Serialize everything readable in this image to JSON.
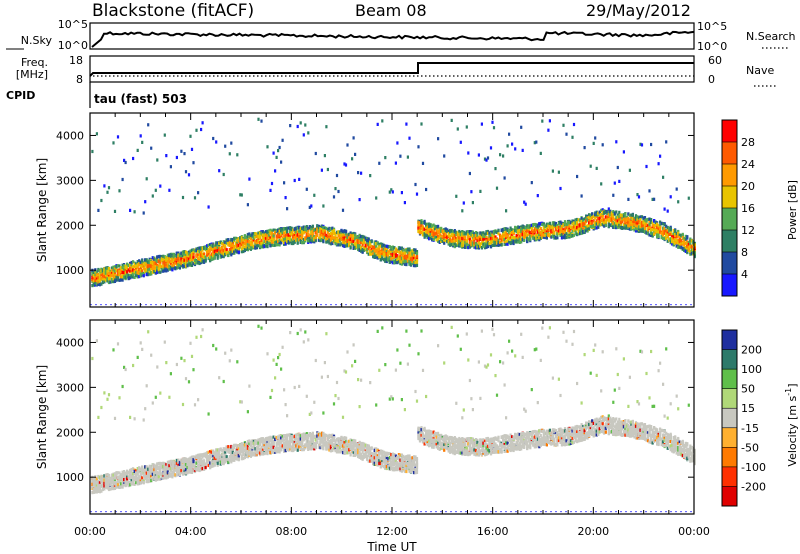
{
  "header": {
    "station": "Blackstone (fitACF)",
    "beam": "Beam 08",
    "date": "29/May/2012"
  },
  "params": {
    "nsky_label": "N.Sky",
    "nsearch_label": "N.Search",
    "noise_ticks": [
      "10^5",
      "10^0"
    ],
    "freq_label_1": "Freq.",
    "freq_label_2": "[MHz]",
    "freq_ticks": [
      "18",
      "8"
    ],
    "nave_label": "Nave",
    "nave_ticks": [
      "60",
      "0"
    ],
    "cpid_label": "CPID",
    "cpid_text": "tau (fast) 503"
  },
  "chart_data": [
    {
      "type": "heatmap",
      "title": "",
      "quantity": "Power",
      "colorbar_label": "Power [dB]",
      "colorbar_ticks": [
        "28",
        "24",
        "20",
        "16",
        "12",
        "8",
        "4"
      ],
      "colorbar_colors": [
        "#ff0000",
        "#ff5a00",
        "#ff9a00",
        "#e8c400",
        "#55aa55",
        "#2e7f64",
        "#204aa0",
        "#1818ff"
      ],
      "ylabel": "Slant Range [km]",
      "yticks": [
        "4000",
        "3000",
        "2000",
        "1000"
      ],
      "ylim": [
        180,
        4500
      ],
      "xlim_hours": [
        0,
        24
      ],
      "xticks": [
        "00:00",
        "04:00",
        "08:00",
        "12:00",
        "16:00",
        "20:00",
        "00:00"
      ],
      "scatter_bands": [
        {
          "from_hour": 0,
          "to_hour": 13,
          "range_km": [
            850,
            1000,
            1150,
            1300,
            1500,
            1700,
            1800,
            1850,
            1700,
            1400,
            1300
          ]
        },
        {
          "from_hour": 13,
          "to_hour": 24,
          "range_km": [
            2000,
            1750,
            1700,
            1800,
            1900,
            1950,
            2200,
            2100,
            1900,
            1500
          ]
        }
      ]
    },
    {
      "type": "heatmap",
      "title": "",
      "quantity": "Velocity",
      "colorbar_label": "Velocity [m s^-1]",
      "colorbar_ticks": [
        "200",
        "100",
        "50",
        "15",
        "-15",
        "-50",
        "-100",
        "-200"
      ],
      "colorbar_colors": [
        "#1f2f9f",
        "#2d7a6a",
        "#5fbf4a",
        "#b0d878",
        "#c8c8c0",
        "#ffb030",
        "#ff7a00",
        "#ff3000",
        "#e00000"
      ],
      "ylabel": "Slant Range [km]",
      "yticks": [
        "4000",
        "3000",
        "2000",
        "1000"
      ],
      "ylim": [
        180,
        4500
      ],
      "xlim_hours": [
        0,
        24
      ],
      "xticks": [
        "00:00",
        "04:00",
        "08:00",
        "12:00",
        "16:00",
        "20:00",
        "00:00"
      ],
      "xlabel": "Time UT"
    }
  ]
}
